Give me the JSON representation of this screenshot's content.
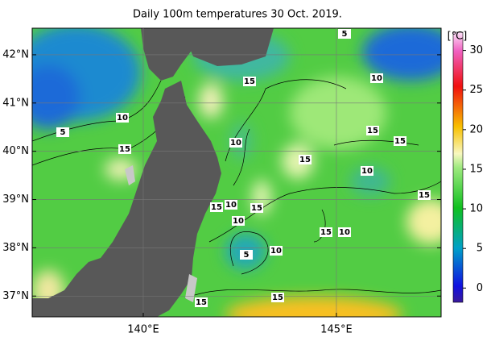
{
  "title": "Daily 100m temperatures 30 Oct. 2019.",
  "map": {
    "lon_range": [
      137.125,
      147.71
    ],
    "lat_range": [
      36.57,
      42.55
    ],
    "lon_ticks": [
      {
        "value": 140,
        "label": "140°E"
      },
      {
        "value": 145,
        "label": "145°E"
      }
    ],
    "lat_ticks": [
      {
        "value": 42,
        "label": "42°N"
      },
      {
        "value": 41,
        "label": "41°N"
      },
      {
        "value": 40,
        "label": "40°N"
      },
      {
        "value": 39,
        "label": "39°N"
      },
      {
        "value": 38,
        "label": "38°N"
      },
      {
        "value": 37,
        "label": "37°N"
      }
    ],
    "contour_labels": [
      5,
      15,
      10,
      10,
      5,
      10,
      15,
      15,
      15,
      15,
      10,
      15,
      15,
      10,
      10,
      15,
      15,
      10,
      5,
      10,
      15,
      15
    ]
  },
  "colorbar": {
    "unit": "[℃]",
    "range": [
      -1.8,
      32.3
    ],
    "ticks": [
      30,
      25,
      20,
      15,
      10,
      5,
      0
    ]
  }
}
